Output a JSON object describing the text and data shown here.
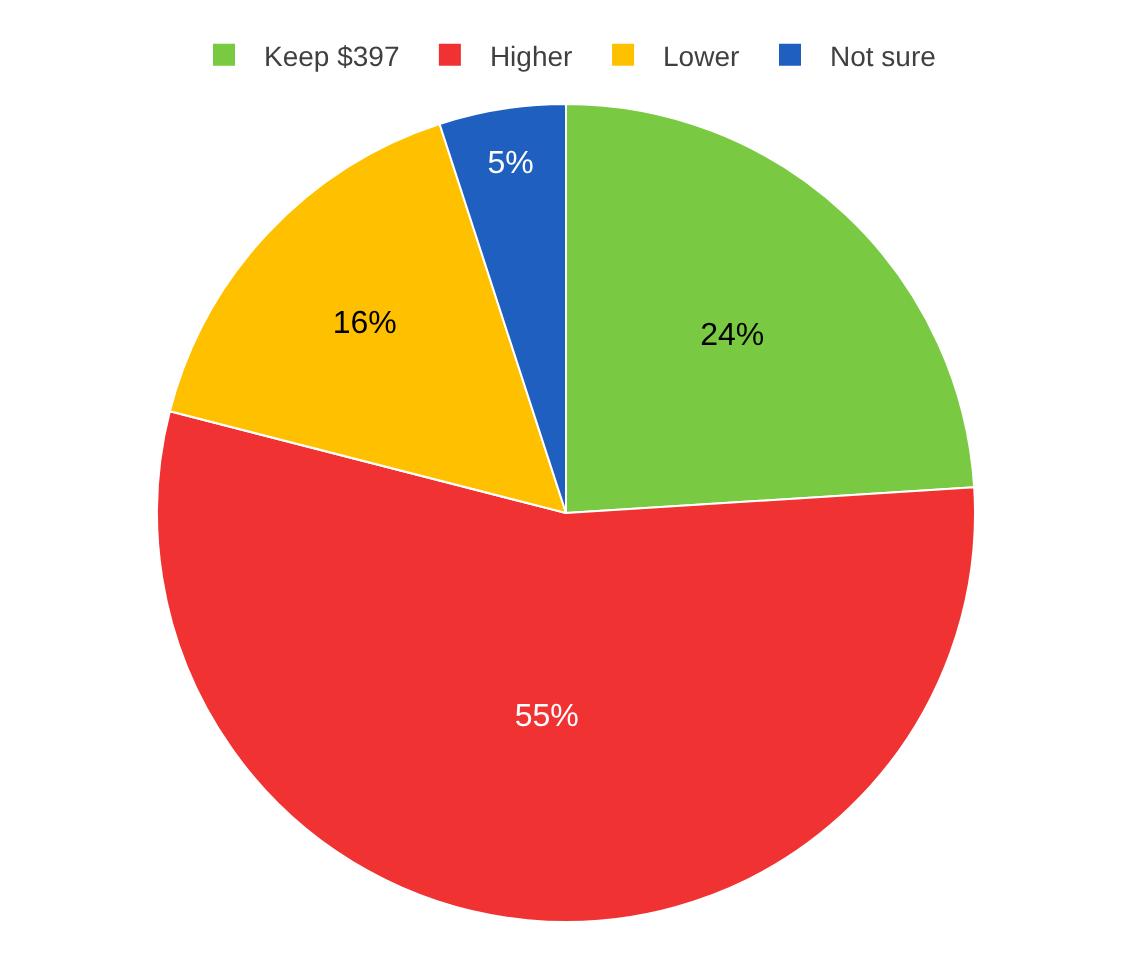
{
  "chart_data": {
    "type": "pie",
    "categories": [
      "Keep $397",
      "Higher",
      "Lower",
      "Not sure"
    ],
    "values": [
      24,
      55,
      16,
      5
    ],
    "colors": [
      "#7ac943",
      "#f03232",
      "#ffc000",
      "#1f5fbf"
    ],
    "value_labels": [
      "24%",
      "55%",
      "16%",
      "5%"
    ],
    "legend": "top"
  }
}
